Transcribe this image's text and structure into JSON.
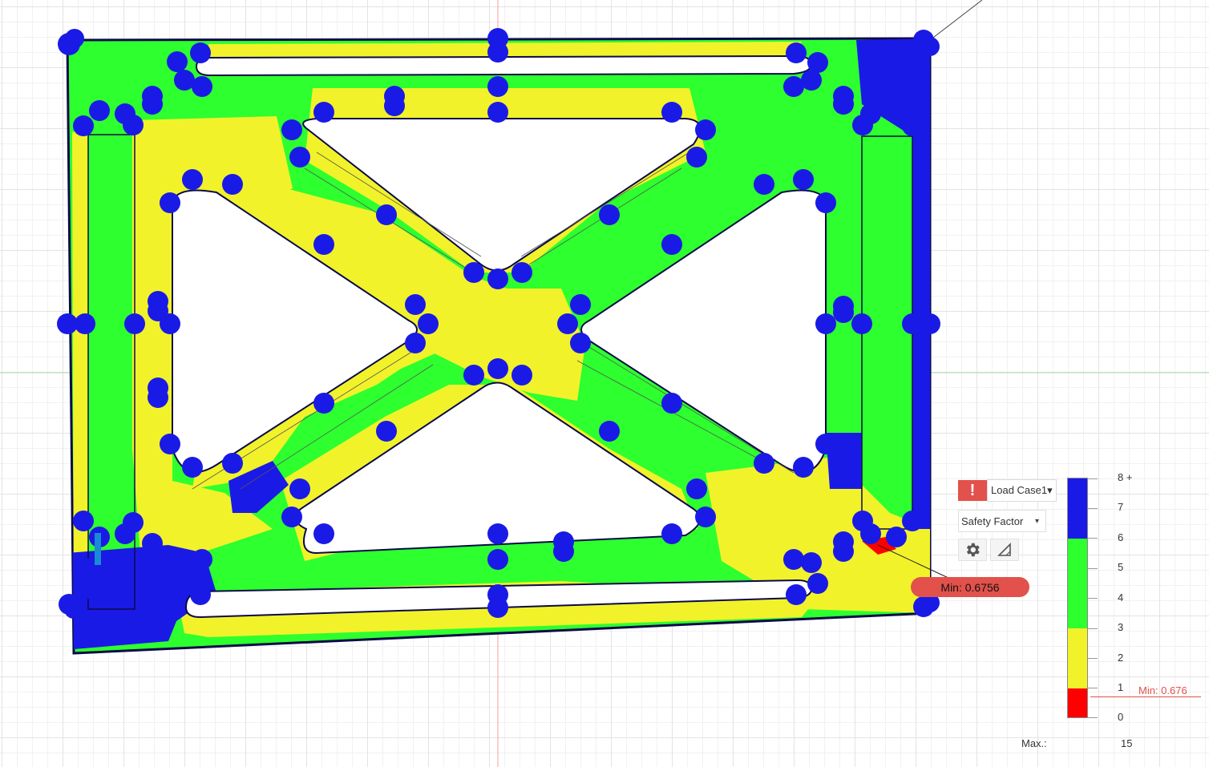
{
  "colors": {
    "red": "#ff0000",
    "yellow": "#f2f22a",
    "green": "#2eff2e",
    "blue": "#1a1ae6",
    "dark_edge": "#0a0a4a",
    "warning": "#e2514b"
  },
  "panel": {
    "warning_icon": "!",
    "load_case_label": "Load Case1",
    "load_case_caret": "▾",
    "result_type_label": "Safety Factor",
    "result_type_caret": "▾",
    "settings_icon": "gear-icon",
    "probe_icon": "triangle-icon"
  },
  "min_badge": {
    "text": "Min: 0.6756"
  },
  "legend": {
    "tick_labels": [
      "8 +",
      "7",
      "6",
      "5",
      "4",
      "3",
      "2",
      "1",
      "0"
    ],
    "min_label": "Min: 0.676",
    "max_label": "Max.:",
    "max_value": "15",
    "bands": [
      "blue",
      "green",
      "yellow",
      "red"
    ]
  }
}
